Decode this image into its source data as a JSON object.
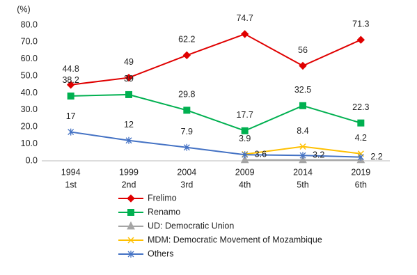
{
  "chart_data": {
    "type": "line",
    "y_label": "(%)",
    "categories": [
      [
        "1994",
        "1st"
      ],
      [
        "1999",
        "2nd"
      ],
      [
        "2004",
        "3rd"
      ],
      [
        "2009",
        "4th"
      ],
      [
        "2014",
        "5th"
      ],
      [
        "2019",
        "6th"
      ]
    ],
    "series": [
      {
        "name": "Frelimo",
        "color": "#e00000",
        "marker": "diamond",
        "values": [
          44.8,
          49,
          62.2,
          74.7,
          56,
          71.3
        ]
      },
      {
        "name": "Renamo",
        "color": "#00b050",
        "marker": "square",
        "values": [
          38.2,
          39,
          29.8,
          17.7,
          32.5,
          22.3
        ]
      },
      {
        "name": "UD: Democratic Union",
        "color": "#a5a5a5",
        "marker": "triangle",
        "values": [
          null,
          null,
          null,
          0.5,
          0.5,
          0.5
        ]
      },
      {
        "name": "MDM: Democratic Movement of Mozambique",
        "color": "#ffc000",
        "marker": "x",
        "values": [
          null,
          null,
          null,
          3.9,
          8.4,
          4.2
        ]
      },
      {
        "name": "Others",
        "color": "#4472c4",
        "marker": "star",
        "values": [
          17,
          12,
          7.9,
          3.6,
          3.2,
          2.2
        ]
      }
    ],
    "ylim": [
      0,
      80
    ],
    "yticks": [
      {
        "value": 0,
        "label": "0.0"
      },
      {
        "value": 10,
        "label": "10.0"
      },
      {
        "value": 20,
        "label": "20.0"
      },
      {
        "value": 30,
        "label": "30.0"
      },
      {
        "value": 40,
        "label": "40.0"
      },
      {
        "value": 50,
        "label": "50.0"
      },
      {
        "value": 60,
        "label": "60.0"
      },
      {
        "value": 70,
        "label": "70.0"
      },
      {
        "value": 80,
        "label": "80.0"
      }
    ],
    "grid": false
  }
}
